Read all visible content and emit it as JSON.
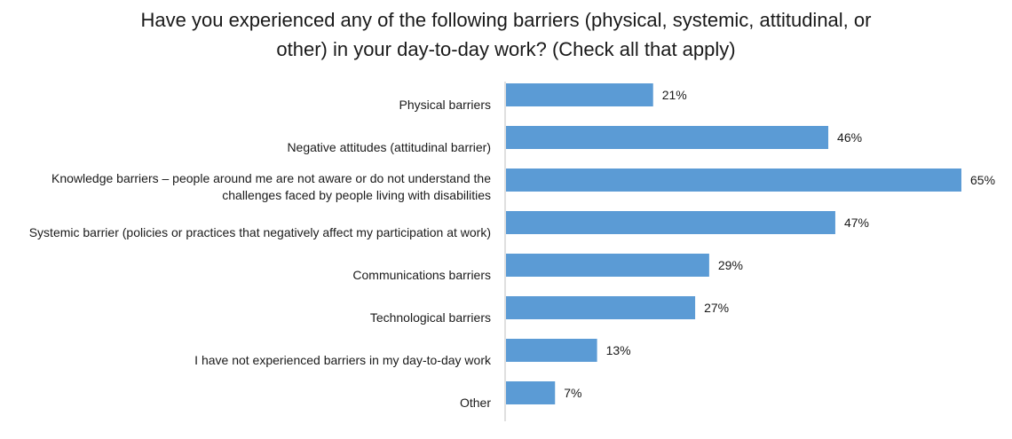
{
  "chart_data": {
    "type": "bar",
    "orientation": "horizontal",
    "title_lines": [
      "Have you experienced any of the following barriers (physical, systemic, attitudinal, or",
      "other) in your day-to-day work? (Check all that apply)"
    ],
    "categories": [
      [
        "Physical barriers"
      ],
      [
        "Negative attitudes (attitudinal barrier)"
      ],
      [
        "Knowledge barriers – people around me are not aware or do not understand the",
        "challenges faced by people living with disabilities"
      ],
      [
        "Systemic barrier (policies or practices that negatively affect my participation at work)"
      ],
      [
        "Communications barriers"
      ],
      [
        "Technological barriers"
      ],
      [
        "I have not experienced barriers in my day-to-day work"
      ],
      [
        "Other"
      ]
    ],
    "values": [
      21,
      46,
      65,
      47,
      29,
      27,
      13,
      7
    ],
    "value_labels": [
      "21%",
      "46%",
      "65%",
      "47%",
      "29%",
      "27%",
      "13%",
      "7%"
    ],
    "unit": "%",
    "xlim": [
      0,
      65
    ],
    "grid": false,
    "legend": "none",
    "bar_color": "#5b9bd5",
    "axis_color": "#bfbfbf"
  }
}
